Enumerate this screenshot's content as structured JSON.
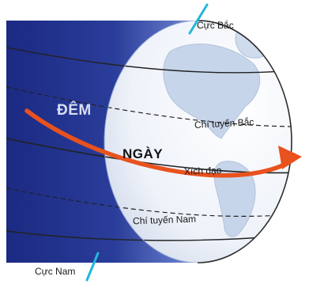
{
  "labels": {
    "north_pole": "Cực Bắc",
    "south_pole": "Cực Nam",
    "tropic_cancer": "Chí tuyến Bắc",
    "tropic_capricorn": "Chí tuyến Nam",
    "equator": "Xích đạo",
    "night": "ĐÊM",
    "day": "NGÀY"
  },
  "colors": {
    "night_side": "#1f2f86",
    "day_side": "#f4f6fb",
    "continent": "#c8d7ea",
    "axis": "#20b8d8",
    "rotation_arrow": "#e8521e"
  }
}
